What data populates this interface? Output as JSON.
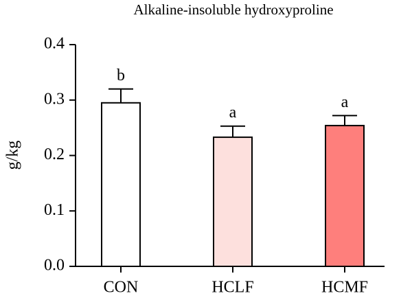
{
  "chart_data": {
    "type": "bar",
    "title": "Alkaline-insoluble hydroxyproline",
    "y_label": "g/kg",
    "categories": [
      "CON",
      "HCLF",
      "HCMF"
    ],
    "values": [
      0.295,
      0.233,
      0.254
    ],
    "errors": [
      0.025,
      0.02,
      0.018
    ],
    "significance": [
      "b",
      "a",
      "a"
    ],
    "colors": [
      "#ffffff",
      "#fde0dd",
      "#fe7f7c"
    ],
    "ylim": [
      0,
      0.4
    ],
    "yticks": [
      {
        "value": 0,
        "label": "0.0"
      },
      0.1,
      0.2,
      0.3,
      0.4
    ]
  }
}
